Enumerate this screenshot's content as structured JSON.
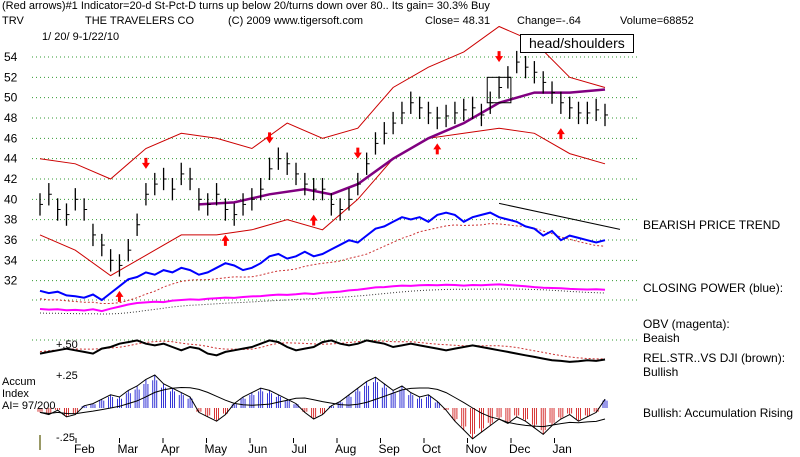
{
  "header": {
    "line1": "(Red arrows)#1 Indicator=20-d St-Pct-D turns up below 20/turns down over 80.. Its gain= 30.3% Buy",
    "ticker": "TRV",
    "company": "THE TRAVELERS CO",
    "copyright": "(C) 2009 www.tigersoft.com",
    "close_label": "Close=",
    "close_value": "48.31",
    "change_label": "Change=",
    "change_value": "-.64",
    "volume_label": "Volume=",
    "volume_value": "68852",
    "date_range": "1/ 20/ 9-1/22/10"
  },
  "annotations": {
    "head_shoulders": "head/shoulders",
    "bearish_trend": "BEARISH PRICE TREND",
    "closing_power": "CLOSING POWER (blue):",
    "obv_line1": "OBV (magenta):",
    "obv_line2": "Beaish",
    "relstr_line1": "REL.STR..VS DJI (brown):",
    "relstr_line2": "Bullish",
    "accum_line1": "Accum",
    "accum_line2": "Index",
    "accum_line3": "AI= 97/200",
    "accum_note": "Bullish: Accumulation Rising"
  },
  "colors": {
    "price": "#000000",
    "bands": "#cc0000",
    "ma": "#800080",
    "closing_power": "#0000ff",
    "obv": "#ff00ff",
    "relstr": "#000000",
    "accum_pos": "#0000cc",
    "accum_neg": "#cc0000",
    "arrow": "#ff0000",
    "grid": "#339933"
  },
  "chart_data": {
    "type": "line",
    "title": "THE TRAVELERS CO",
    "ylim": [
      30,
      56
    ],
    "y_ticks": [
      32,
      34,
      36,
      38,
      40,
      42,
      44,
      46,
      48,
      50,
      52,
      54
    ],
    "months": [
      "Feb",
      "Mar",
      "Apr",
      "May",
      "Jun",
      "Jul",
      "Aug",
      "Sep",
      "Oct",
      "Nov",
      "Dec",
      "Jan"
    ],
    "price": [
      [
        0,
        39.5
      ],
      [
        1,
        40.5
      ],
      [
        2,
        39
      ],
      [
        3,
        38.5
      ],
      [
        4,
        40
      ],
      [
        5,
        39
      ],
      [
        6,
        36.5
      ],
      [
        7,
        35.5
      ],
      [
        8,
        34
      ],
      [
        9,
        33.5
      ],
      [
        10,
        35
      ],
      [
        11,
        37.5
      ],
      [
        12,
        40.5
      ],
      [
        13,
        41.5
      ],
      [
        14,
        42
      ],
      [
        15,
        41
      ],
      [
        16,
        42.5
      ],
      [
        17,
        42
      ],
      [
        18,
        40
      ],
      [
        19,
        39.5
      ],
      [
        20,
        40.5
      ],
      [
        21,
        39
      ],
      [
        22,
        38.5
      ],
      [
        23,
        39.5
      ],
      [
        24,
        40
      ],
      [
        25,
        41
      ],
      [
        26,
        43
      ],
      [
        27,
        44
      ],
      [
        28,
        43.5
      ],
      [
        29,
        42.5
      ],
      [
        30,
        41.5
      ],
      [
        31,
        41
      ],
      [
        32,
        41
      ],
      [
        33,
        39.5
      ],
      [
        34,
        39
      ],
      [
        35,
        40
      ],
      [
        36,
        41.5
      ],
      [
        37,
        43.5
      ],
      [
        38,
        45.5
      ],
      [
        39,
        46.5
      ],
      [
        40,
        47.5
      ],
      [
        41,
        48.5
      ],
      [
        42,
        49.5
      ],
      [
        43,
        49
      ],
      [
        44,
        48.5
      ],
      [
        45,
        48
      ],
      [
        46,
        48.2
      ],
      [
        47,
        48.5
      ],
      [
        48,
        48.8
      ],
      [
        49,
        49
      ],
      [
        50,
        48.3
      ],
      [
        51,
        49.5
      ],
      [
        52,
        51
      ],
      [
        53,
        52
      ],
      [
        54,
        53.5
      ],
      [
        55,
        53
      ],
      [
        56,
        52.5
      ],
      [
        57,
        51.5
      ],
      [
        58,
        50.5
      ],
      [
        59,
        49.5
      ],
      [
        60,
        49
      ],
      [
        61,
        48.5
      ],
      [
        62,
        48.5
      ],
      [
        63,
        48.8
      ],
      [
        64,
        48.3
      ]
    ],
    "upper_band": [
      [
        0,
        44
      ],
      [
        4,
        43.5
      ],
      [
        8,
        42
      ],
      [
        12,
        45
      ],
      [
        16,
        46.5
      ],
      [
        20,
        46
      ],
      [
        24,
        45
      ],
      [
        28,
        47.5
      ],
      [
        32,
        46
      ],
      [
        36,
        47
      ],
      [
        40,
        51
      ],
      [
        44,
        53
      ],
      [
        48,
        54.5
      ],
      [
        52,
        57
      ],
      [
        56,
        55.5
      ],
      [
        60,
        52
      ],
      [
        64,
        51
      ]
    ],
    "lower_band": [
      [
        0,
        36.5
      ],
      [
        4,
        35
      ],
      [
        8,
        32.5
      ],
      [
        12,
        34.5
      ],
      [
        16,
        36.5
      ],
      [
        20,
        36.5
      ],
      [
        24,
        37
      ],
      [
        28,
        38
      ],
      [
        32,
        37
      ],
      [
        36,
        40
      ],
      [
        40,
        44
      ],
      [
        44,
        46
      ],
      [
        48,
        46.5
      ],
      [
        52,
        47
      ],
      [
        56,
        46.5
      ],
      [
        60,
        44.5
      ],
      [
        64,
        43.5
      ]
    ],
    "moving_avg": [
      [
        18,
        39.5
      ],
      [
        22,
        39.7
      ],
      [
        26,
        40.5
      ],
      [
        30,
        41
      ],
      [
        33,
        40.5
      ],
      [
        36,
        41.5
      ],
      [
        40,
        44
      ],
      [
        44,
        46
      ],
      [
        48,
        47.5
      ],
      [
        52,
        49.5
      ],
      [
        56,
        50.5
      ],
      [
        60,
        50.5
      ],
      [
        64,
        50.8
      ]
    ],
    "red_arrows": [
      {
        "i": 9,
        "dir": "up"
      },
      {
        "i": 12,
        "dir": "down"
      },
      {
        "i": 21,
        "dir": "up"
      },
      {
        "i": 26,
        "dir": "down"
      },
      {
        "i": 31,
        "dir": "up"
      },
      {
        "i": 36,
        "dir": "down"
      },
      {
        "i": 45,
        "dir": "up"
      },
      {
        "i": 52,
        "dir": "down"
      },
      {
        "i": 59,
        "dir": "up"
      }
    ],
    "closing_power": [
      2,
      1.5,
      1.8,
      1,
      0.8,
      0.5,
      1.2,
      0,
      1.5,
      3,
      4.5,
      5,
      6,
      5.5,
      6.5,
      6,
      7,
      6.5,
      5.5,
      6,
      7,
      8,
      7.5,
      6.5,
      7,
      8,
      9.5,
      10,
      9,
      9.5,
      10.5,
      9.5,
      10,
      11,
      12,
      13,
      12.5,
      14,
      15.5,
      16,
      17,
      18,
      17.5,
      18,
      17,
      18.5,
      19,
      18.5,
      17,
      18,
      18.5,
      19,
      18,
      17.5,
      17,
      16,
      15.5,
      14,
      15,
      13,
      14,
      13.5,
      13,
      12.5,
      13
    ],
    "obv": [
      1,
      0.8,
      0.9,
      0.6,
      0.7,
      0.5,
      0.9,
      0.3,
      1.1,
      1.8,
      2.5,
      3,
      3.2,
      3.4,
      3.3,
      3.8,
      4,
      4.2,
      4.1,
      4.4,
      4.6,
      4.8,
      4.7,
      5,
      5.2,
      5.3,
      5.6,
      5.8,
      5.7,
      5.9,
      6.2,
      6,
      6.4,
      6.6,
      6.8,
      7.2,
      7.4,
      7.8,
      8.2,
      8.3,
      8.6,
      8.8,
      8.7,
      8.9,
      9,
      8.9,
      9.1,
      9,
      8.8,
      9,
      8.9,
      9.1,
      9.2,
      9,
      8.8,
      8.6,
      8.3,
      8.1,
      8,
      7.9,
      7.7,
      7.6,
      7.5,
      7.6,
      7.4
    ],
    "relstr": [
      8,
      8.5,
      9,
      9.5,
      9,
      8.5,
      8,
      9.5,
      10,
      11,
      11.5,
      12,
      11,
      10.5,
      11,
      10,
      9,
      10,
      9.5,
      8,
      7.5,
      8.5,
      9,
      9.5,
      10,
      11,
      12,
      11.5,
      10,
      9,
      9.5,
      10,
      11.5,
      12,
      11,
      10.5,
      11,
      12,
      11.5,
      11,
      10,
      10.5,
      11,
      10.5,
      10,
      9.5,
      9,
      9.5,
      10,
      10.5,
      10,
      9.5,
      9,
      8.5,
      8,
      7.5,
      7,
      6.5,
      6,
      5.8,
      5.5,
      5.7,
      6,
      5.8,
      6.2
    ],
    "accum": [
      -2,
      -3,
      -1,
      -4,
      -3,
      1,
      2,
      4,
      6,
      5,
      8,
      10,
      13,
      15,
      11,
      9,
      7,
      5,
      -2,
      -4,
      -6,
      -3,
      2,
      5,
      7,
      9,
      8,
      6,
      4,
      2,
      -2,
      -5,
      -3,
      1,
      3,
      6,
      9,
      12,
      14,
      11,
      8,
      10,
      7,
      5,
      6,
      3,
      -1,
      -6,
      -10,
      -14,
      -11,
      -8,
      -5,
      -7,
      -4,
      -6,
      -9,
      -12,
      -8,
      -5,
      -3,
      -6,
      -4,
      -2,
      4
    ],
    "accum_scale": {
      "top": "+.50",
      "mid": "+.25",
      "bottom": "-.25"
    },
    "trendline": [
      [
        52,
        21
      ],
      [
        66,
        16
      ]
    ],
    "hs_box": [
      51,
      53
    ]
  }
}
